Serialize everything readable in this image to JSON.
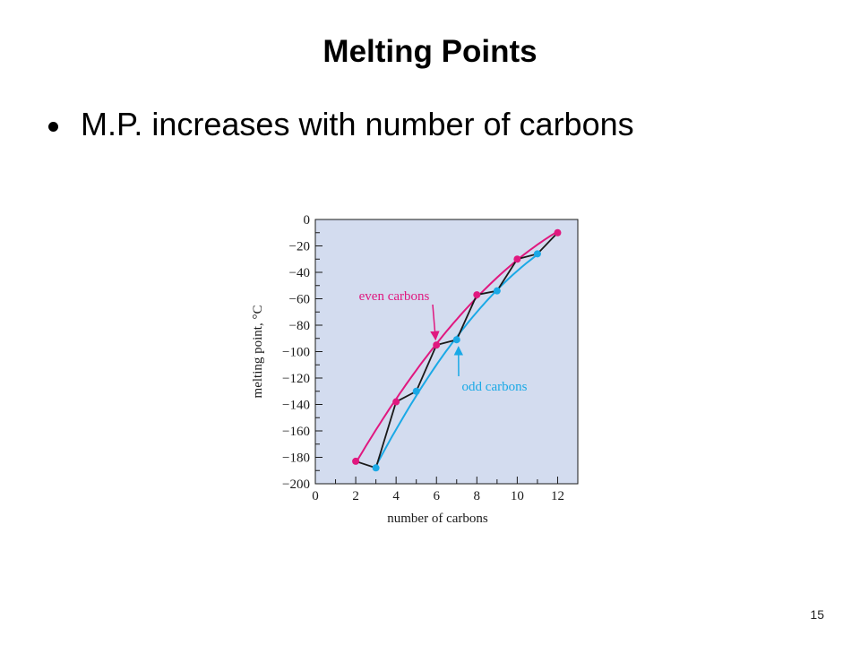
{
  "slide": {
    "title": "Melting Points",
    "bullet": "M.P. increases with number of carbons",
    "page_number": "15"
  },
  "chart_data": {
    "type": "scatter",
    "xlabel": "number of carbons",
    "ylabel": "melting point, °C",
    "xlim": [
      0,
      13
    ],
    "ylim": [
      -200,
      0
    ],
    "x_ticks": [
      0,
      2,
      4,
      6,
      8,
      10,
      12
    ],
    "y_ticks": [
      0,
      -20,
      -40,
      -60,
      -80,
      -100,
      -120,
      -140,
      -160,
      -180,
      -200
    ],
    "background_color": "#d3dcef",
    "series": [
      {
        "name": "even carbons",
        "color": "#e0187f",
        "x": [
          2,
          4,
          6,
          8,
          10,
          12
        ],
        "y": [
          -183,
          -138,
          -95,
          -57,
          -30,
          -10
        ]
      },
      {
        "name": "odd carbons",
        "color": "#1aa9e6",
        "x": [
          3,
          5,
          7,
          9,
          11
        ],
        "y": [
          -188,
          -130,
          -91,
          -54,
          -26
        ]
      }
    ],
    "connecting_line": {
      "color": "#1a1a1a",
      "x": [
        2,
        3,
        4,
        5,
        6,
        7,
        8,
        9,
        10,
        11,
        12
      ],
      "y": [
        -183,
        -188,
        -138,
        -130,
        -95,
        -91,
        -57,
        -54,
        -30,
        -26,
        -10
      ]
    },
    "annotations": [
      {
        "text": "even carbons",
        "color": "#e0187f",
        "points_to": [
          6,
          -95
        ]
      },
      {
        "text": "odd carbons",
        "color": "#1aa9e6",
        "points_to": [
          7,
          -91
        ]
      }
    ]
  }
}
